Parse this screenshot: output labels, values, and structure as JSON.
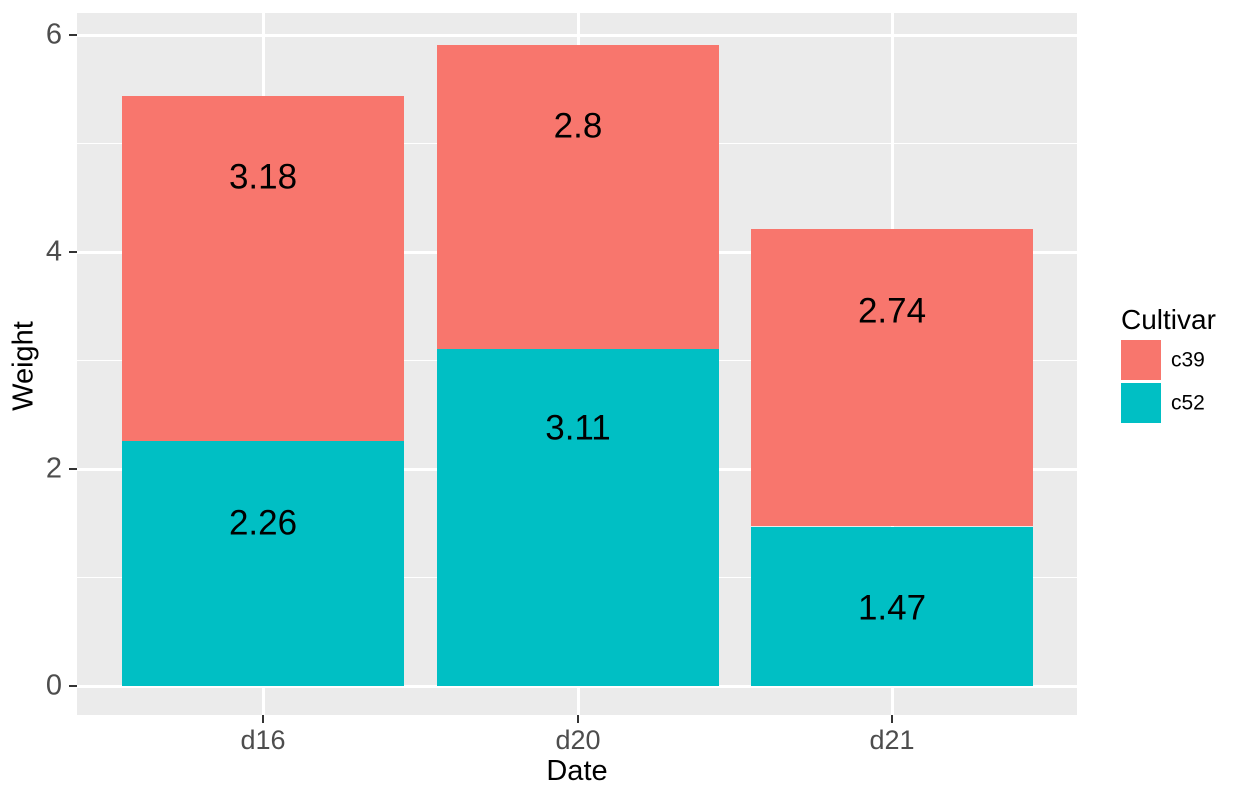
{
  "chart_data": {
    "type": "bar",
    "stacked": true,
    "title": "",
    "xlabel": "Date",
    "ylabel": "Weight",
    "categories": [
      "d16",
      "d20",
      "d21"
    ],
    "series": [
      {
        "name": "c39",
        "color": "#F8766D",
        "values": [
          3.18,
          2.8,
          2.74
        ]
      },
      {
        "name": "c52",
        "color": "#00BFC4",
        "values": [
          2.26,
          3.11,
          1.47
        ]
      }
    ],
    "stack_bottom_to_top": [
      "c52",
      "c39"
    ],
    "totals": [
      5.44,
      5.91,
      4.21
    ],
    "bar_labels": [
      {
        "category": "d16",
        "series": "c39",
        "text": "3.18",
        "y_value": 4.69
      },
      {
        "category": "d20",
        "series": "c39",
        "text": "2.8",
        "y_value": 5.16
      },
      {
        "category": "d21",
        "series": "c39",
        "text": "2.74",
        "y_value": 3.46
      },
      {
        "category": "d16",
        "series": "c52",
        "text": "2.26",
        "y_value": 1.5
      },
      {
        "category": "d20",
        "series": "c52",
        "text": "3.11",
        "y_value": 2.38
      },
      {
        "category": "d21",
        "series": "c52",
        "text": "1.47",
        "y_value": 0.72
      }
    ],
    "y_axis": {
      "ticks": [
        "0",
        "2",
        "4",
        "6"
      ],
      "tick_values": [
        0,
        2,
        4,
        6
      ],
      "minor_tick_values": [
        1,
        3,
        5
      ],
      "range_shown": [
        -0.27,
        6.2
      ]
    },
    "x_axis": {
      "tick_labels": [
        "d16",
        "d20",
        "d21"
      ]
    },
    "legend": {
      "title": "Cultivar",
      "position": "right",
      "entries": [
        {
          "label": "c39",
          "color": "#F8766D"
        },
        {
          "label": "c52",
          "color": "#00BFC4"
        }
      ]
    },
    "grid": {
      "major": true,
      "minor_horizontal": true
    }
  },
  "style": {
    "background": "#FFFFFF",
    "panel_background": "#EBEBEB",
    "grid_color": "#FFFFFF",
    "axis_text_color": "#4D4D4D",
    "axis_title_color": "#000000",
    "bar_label_color": "#000000",
    "legend_text_color": "#000000",
    "tick_mark_color": "#333333"
  }
}
